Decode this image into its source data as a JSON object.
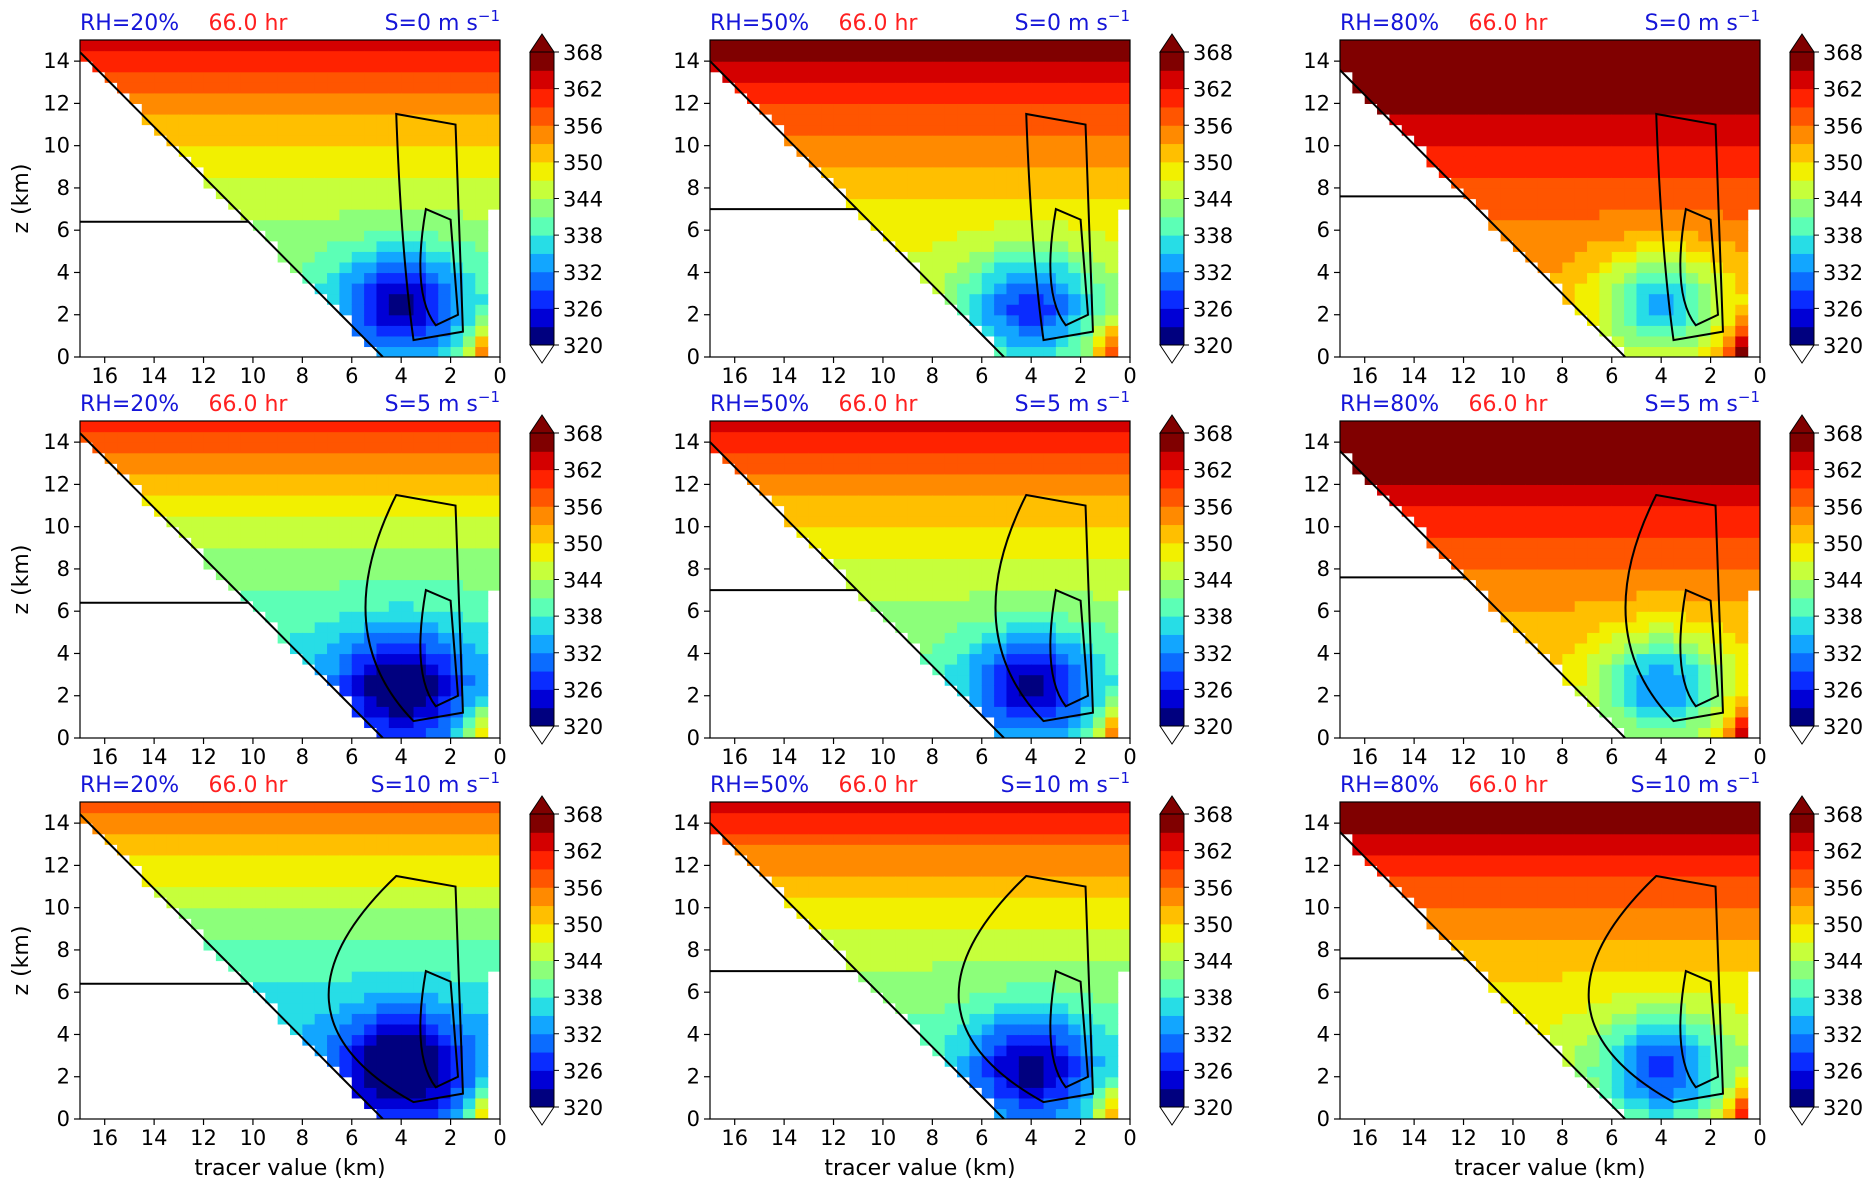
{
  "figure": {
    "colorbar": {
      "tick_labels": [
        "368",
        "362",
        "356",
        "350",
        "344",
        "338",
        "332",
        "326",
        "320"
      ],
      "colors": [
        "#00007f",
        "#0000d6",
        "#0a2cff",
        "#0b6cff",
        "#12a6ff",
        "#27dde6",
        "#5cffb6",
        "#8cff7a",
        "#c6ff3b",
        "#f2f000",
        "#ffbf00",
        "#ff8a00",
        "#ff5500",
        "#ff2200",
        "#d40000",
        "#800000"
      ]
    },
    "xtick_labels": [
      "16",
      "14",
      "12",
      "10",
      "8",
      "6",
      "4",
      "2",
      "0"
    ],
    "ytick_labels": [
      "14",
      "12",
      "10",
      "8",
      "6",
      "4",
      "2",
      "0"
    ],
    "ylabel": "z (km)",
    "xlabel": "tracer value (km)",
    "title_colors": {
      "rh": "#1515d8",
      "time": "#ff2020",
      "shear": "#1515d8"
    }
  },
  "chart_data": [
    {
      "type": "heatmap",
      "rh_label": "RH=20%",
      "time_label": "66.0 hr",
      "shear_label": "S=0 m s",
      "shear_exp": "−1",
      "xlim": [
        17,
        0
      ],
      "ylim": [
        0,
        15
      ],
      "clim": [
        320,
        368
      ],
      "shade_bias": 0.0,
      "rh": 20,
      "shear": 0
    },
    {
      "type": "heatmap",
      "rh_label": "RH=50%",
      "time_label": "66.0 hr",
      "shear_label": "S=0 m s",
      "shear_exp": "−1",
      "xlim": [
        17,
        0
      ],
      "ylim": [
        0,
        15
      ],
      "clim": [
        320,
        368
      ],
      "shade_bias": 0.1,
      "rh": 50,
      "shear": 0
    },
    {
      "type": "heatmap",
      "rh_label": "RH=80%",
      "time_label": "66.0 hr",
      "shear_label": "S=0 m s",
      "shear_exp": "−1",
      "xlim": [
        17,
        0
      ],
      "ylim": [
        0,
        15
      ],
      "clim": [
        320,
        368
      ],
      "shade_bias": 0.25,
      "rh": 80,
      "shear": 0
    },
    {
      "type": "heatmap",
      "rh_label": "RH=20%",
      "time_label": "66.0 hr",
      "shear_label": "S=5 m s",
      "shear_exp": "−1",
      "xlim": [
        17,
        0
      ],
      "ylim": [
        0,
        15
      ],
      "clim": [
        320,
        368
      ],
      "shade_bias": -0.08,
      "rh": 20,
      "shear": 5
    },
    {
      "type": "heatmap",
      "rh_label": "RH=50%",
      "time_label": "66.0 hr",
      "shear_label": "S=5 m s",
      "shear_exp": "−1",
      "xlim": [
        17,
        0
      ],
      "ylim": [
        0,
        15
      ],
      "clim": [
        320,
        368
      ],
      "shade_bias": 0.0,
      "rh": 50,
      "shear": 5
    },
    {
      "type": "heatmap",
      "rh_label": "RH=80%",
      "time_label": "66.0 hr",
      "shear_label": "S=5 m s",
      "shear_exp": "−1",
      "xlim": [
        17,
        0
      ],
      "ylim": [
        0,
        15
      ],
      "clim": [
        320,
        368
      ],
      "shade_bias": 0.2,
      "rh": 80,
      "shear": 5
    },
    {
      "type": "heatmap",
      "rh_label": "RH=20%",
      "time_label": "66.0 hr",
      "shear_label": "S=10 m s",
      "shear_exp": "−1",
      "xlim": [
        17,
        0
      ],
      "ylim": [
        0,
        15
      ],
      "clim": [
        320,
        368
      ],
      "shade_bias": -0.12,
      "rh": 20,
      "shear": 10
    },
    {
      "type": "heatmap",
      "rh_label": "RH=50%",
      "time_label": "66.0 hr",
      "shear_label": "S=10 m s",
      "shear_exp": "−1",
      "xlim": [
        17,
        0
      ],
      "ylim": [
        0,
        15
      ],
      "clim": [
        320,
        368
      ],
      "shade_bias": -0.02,
      "rh": 50,
      "shear": 10
    },
    {
      "type": "heatmap",
      "rh_label": "RH=80%",
      "time_label": "66.0 hr",
      "shear_label": "S=10 m s",
      "shear_exp": "−1",
      "xlim": [
        17,
        0
      ],
      "ylim": [
        0,
        15
      ],
      "clim": [
        320,
        368
      ],
      "shade_bias": 0.12,
      "rh": 80,
      "shear": 10
    }
  ]
}
